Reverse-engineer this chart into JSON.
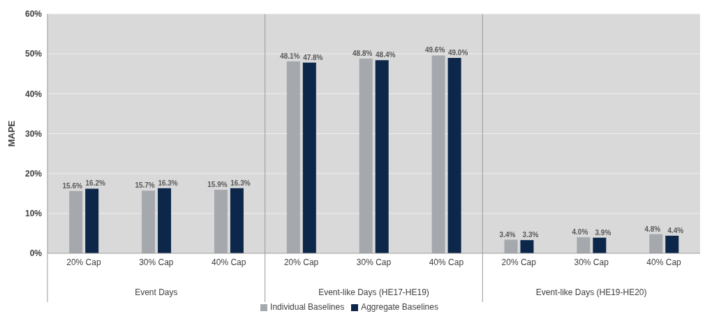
{
  "chart_data": {
    "type": "bar",
    "ylabel": "MAPE",
    "categories": [
      "20% Cap",
      "30% Cap",
      "40% Cap",
      "20% Cap",
      "30% Cap",
      "40% Cap",
      "20% Cap",
      "30% Cap",
      "40% Cap"
    ],
    "series": [
      {
        "name": "Individual Baselines",
        "color": "#a5a8ad",
        "values": [
          15.6,
          15.7,
          15.9,
          48.1,
          48.8,
          49.6,
          3.4,
          4.0,
          4.8
        ],
        "value_labels": [
          "15.6%",
          "15.7%",
          "15.9%",
          "48.1%",
          "48.8%",
          "49.6%",
          "3.4%",
          "4.0%",
          "4.8%"
        ]
      },
      {
        "name": "Aggregate Baselines",
        "color": "#0c2749",
        "values": [
          16.2,
          16.3,
          16.3,
          47.8,
          48.4,
          49.0,
          3.3,
          3.9,
          4.4
        ],
        "value_labels": [
          "16.2%",
          "16.3%",
          "16.3%",
          "47.8%",
          "48.4%",
          "49.0%",
          "3.3%",
          "3.9%",
          "4.4%"
        ]
      }
    ],
    "annotations": [
      "Event Days",
      "Event-like Days (HE17-HE19)",
      "Event-like Days (HE19-HE20)"
    ],
    "ylim": [
      0,
      60
    ],
    "yticks": [
      {
        "value": 0,
        "label": "0%"
      },
      {
        "value": 10,
        "label": "10%"
      },
      {
        "value": 20,
        "label": "20%"
      },
      {
        "value": 30,
        "label": "30%"
      },
      {
        "value": 40,
        "label": "40%"
      },
      {
        "value": 50,
        "label": "50%"
      },
      {
        "value": 60,
        "label": "60%"
      }
    ],
    "grid": "y",
    "legend": "bottom"
  }
}
